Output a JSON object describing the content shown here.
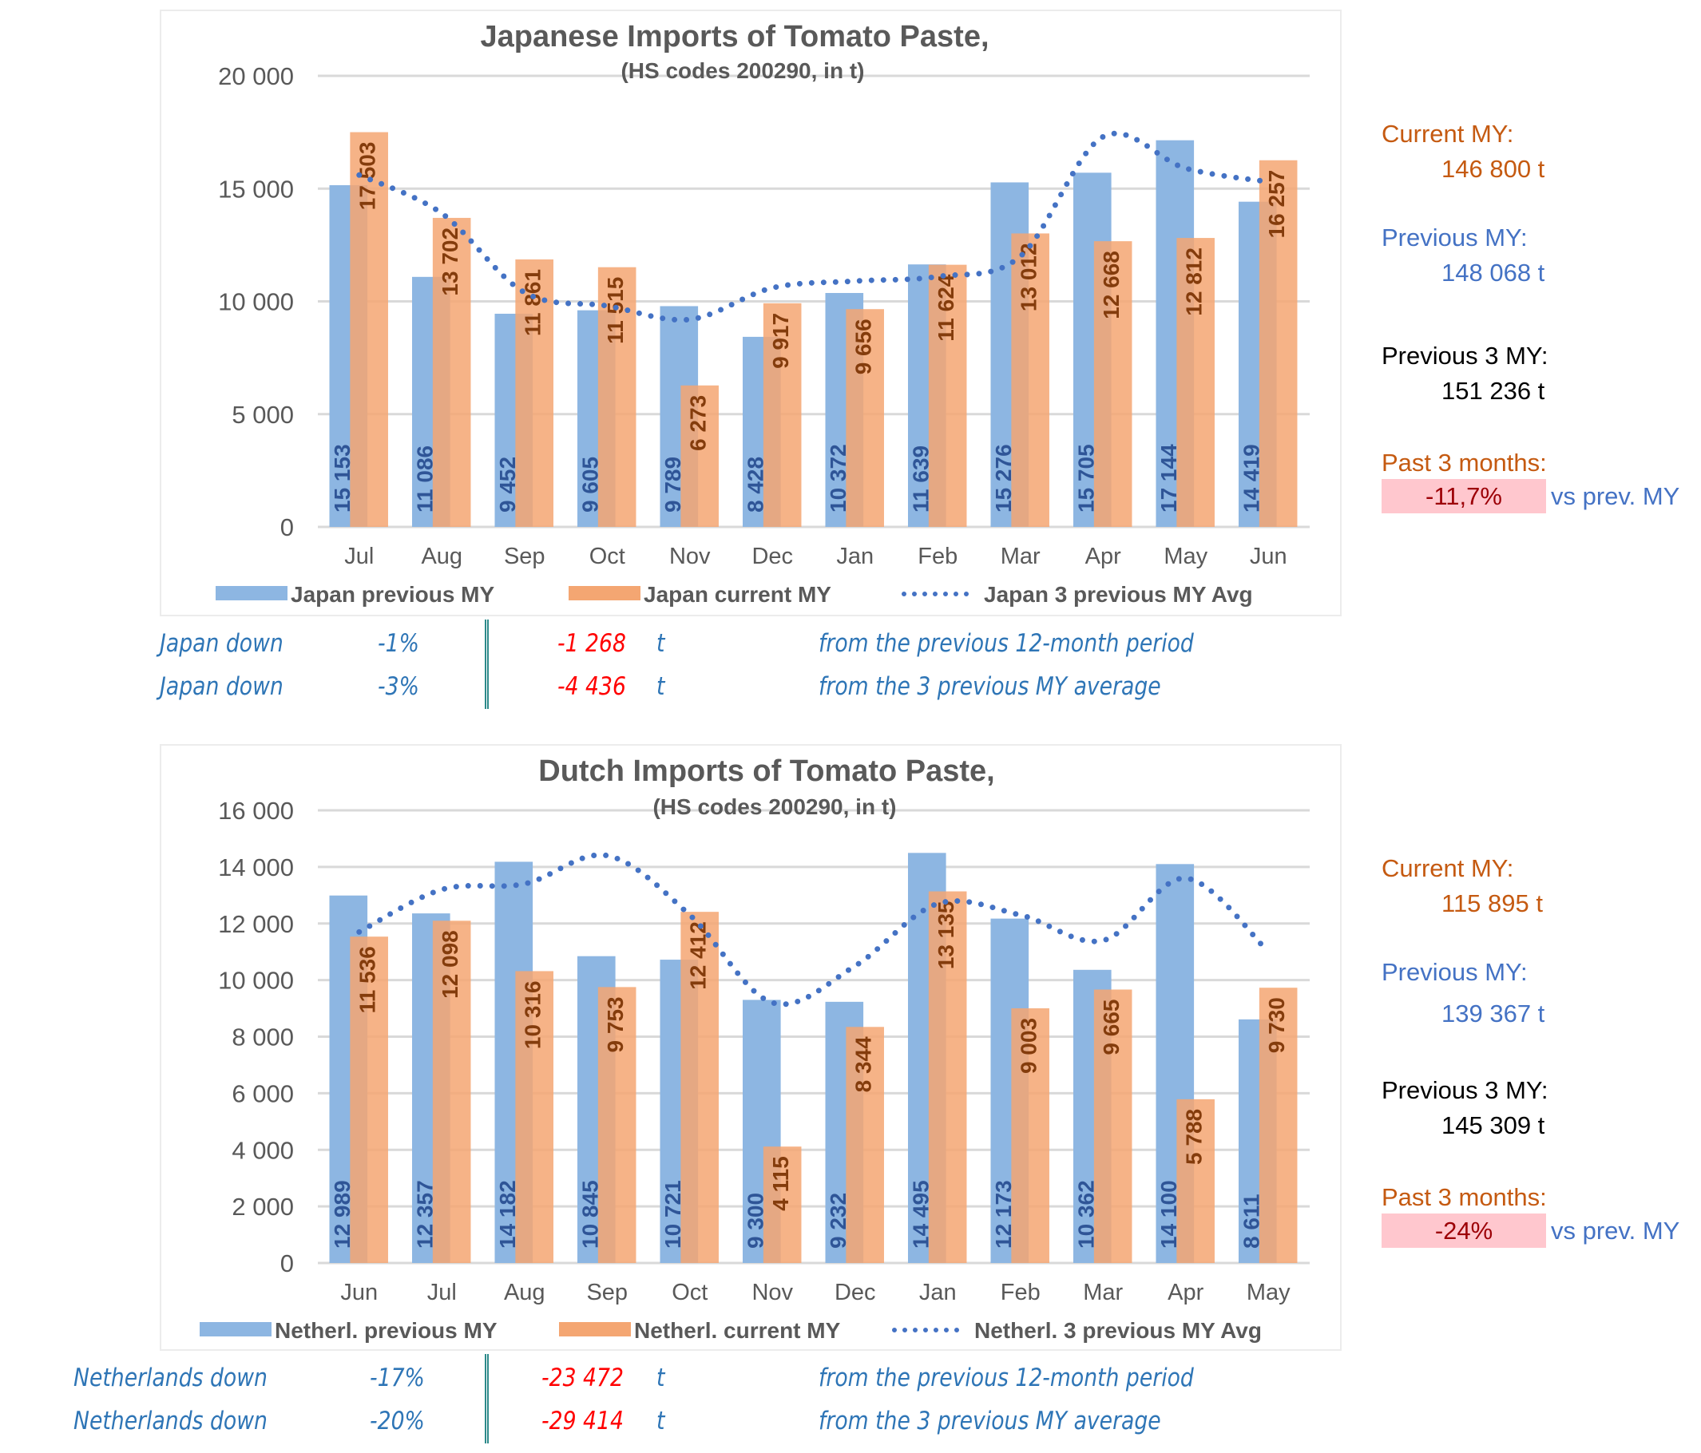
{
  "charts": [
    {
      "id": "japan",
      "side": {
        "current_label": "Current MY:",
        "current_value": "146 800  t",
        "previous_label": "Previous MY:",
        "previous_value": "148 068  t",
        "prev3_label": "Previous 3 MY:",
        "prev3_value": "151 236  t",
        "past3_label": "Past 3 months:",
        "past3_badge": "-11,7%",
        "past3_suffix": "vs prev. MY"
      },
      "footer": [
        {
          "label": "Japan down",
          "pct": "-1%",
          "amount": "-1 268",
          "unit": "t",
          "text": "from the previous 12-month period"
        },
        {
          "label": "Japan down",
          "pct": "-3%",
          "amount": "-4 436",
          "unit": "t",
          "text": "from the 3 previous MY average"
        }
      ]
    },
    {
      "id": "netherlands",
      "side": {
        "current_label": "Current MY:",
        "current_value": "115 895  t",
        "previous_label": "Previous MY:",
        "previous_value": "139 367  t",
        "prev3_label": "Previous 3 MY:",
        "prev3_value": "145 309  t",
        "past3_label": "Past 3 months:",
        "past3_badge": "-24%",
        "past3_suffix": "vs prev. MY"
      },
      "footer": [
        {
          "label": "Netherlands down",
          "pct": "-17%",
          "amount": "-23 472",
          "unit": "t",
          "text": "from the previous 12-month period"
        },
        {
          "label": "Netherlands down",
          "pct": "-20%",
          "amount": "-29 414",
          "unit": "t",
          "text": "from the 3 previous MY average"
        }
      ]
    }
  ],
  "colors": {
    "previous": "#8db6e2",
    "current": "#f4a672",
    "avg": "#4472c4",
    "prev_label": "#2f5597",
    "cur_label": "#843c0c",
    "axis_text": "#595959",
    "grid": "#d9d9d9"
  },
  "chart_data": [
    {
      "type": "bar",
      "title": "Japanese Imports of Tomato Paste,",
      "subtitle": "(HS codes 200290, in t)",
      "xlabel": "",
      "ylabel": "",
      "categories": [
        "Jul",
        "Aug",
        "Sep",
        "Oct",
        "Nov",
        "Dec",
        "Jan",
        "Feb",
        "Mar",
        "Apr",
        "May",
        "Jun"
      ],
      "ylim": [
        0,
        20000
      ],
      "yticks": [
        0,
        5000,
        10000,
        15000,
        20000
      ],
      "ytick_labels": [
        "0",
        "5 000",
        "10 000",
        "15 000",
        "20 000"
      ],
      "grid": true,
      "legend_position": "bottom",
      "series": [
        {
          "name": "Japan previous MY",
          "type": "bar",
          "values": [
            15153,
            11086,
            9452,
            9605,
            9789,
            8428,
            10372,
            11639,
            15276,
            15705,
            17144,
            14419
          ],
          "labels": [
            "15 153",
            "11 086",
            "9 452",
            "9 605",
            "9 789",
            "8 428",
            "10 372",
            "11 639",
            "15 276",
            "15 705",
            "17 144",
            "14 419"
          ]
        },
        {
          "name": "Japan current MY",
          "type": "bar",
          "values": [
            17503,
            13702,
            11861,
            11515,
            6273,
            9917,
            9656,
            11624,
            13012,
            12668,
            12812,
            16257
          ],
          "labels": [
            "17 503",
            "13 702",
            "11 861",
            "11 515",
            "6 273",
            "9 917",
            "9 656",
            "11 624",
            "13 012",
            "12 668",
            "12 812",
            "16 257"
          ]
        },
        {
          "name": "Japan 3 previous MY Avg",
          "type": "line",
          "style": "dotted",
          "values": [
            15600,
            13900,
            10400,
            9800,
            9200,
            10600,
            10900,
            11100,
            12000,
            17300,
            15900,
            15300
          ]
        }
      ]
    },
    {
      "type": "bar",
      "title": "Dutch Imports of Tomato Paste,",
      "subtitle": "(HS codes 200290, in t)",
      "xlabel": "",
      "ylabel": "",
      "categories": [
        "Jun",
        "Jul",
        "Aug",
        "Sep",
        "Oct",
        "Nov",
        "Dec",
        "Jan",
        "Feb",
        "Mar",
        "Apr",
        "May"
      ],
      "ylim": [
        0,
        16000
      ],
      "yticks": [
        0,
        2000,
        4000,
        6000,
        8000,
        10000,
        12000,
        14000,
        16000
      ],
      "ytick_labels": [
        "0",
        "2 000",
        "4 000",
        "6 000",
        "8 000",
        "10 000",
        "12 000",
        "14 000",
        "16 000"
      ],
      "grid": true,
      "legend_position": "bottom",
      "series": [
        {
          "name": "Netherl. previous MY",
          "type": "bar",
          "values": [
            12989,
            12357,
            14182,
            10845,
            10721,
            9300,
            9232,
            14495,
            12173,
            10362,
            14100,
            8611
          ],
          "labels": [
            "12 989",
            "12 357",
            "14 182",
            "10 845",
            "10 721",
            "9 300",
            "9 232",
            "14 495",
            "12 173",
            "10 362",
            "14 100",
            "8 611"
          ]
        },
        {
          "name": "Netherl. current MY",
          "type": "bar",
          "values": [
            11536,
            12098,
            10316,
            9753,
            12412,
            4115,
            8344,
            13135,
            9003,
            9665,
            5788,
            9730
          ],
          "labels": [
            "11 536",
            "12 098",
            "10 316",
            "9 753",
            "12 412",
            "4 115",
            "8 344",
            "13 135",
            "9 003",
            "9 665",
            "5 788",
            "9 730"
          ]
        },
        {
          "name": "Netherl. 3 previous MY Avg",
          "type": "line",
          "style": "dotted",
          "values": [
            11700,
            13200,
            13400,
            14400,
            12300,
            9200,
            10500,
            12700,
            12300,
            11400,
            13600,
            11000
          ]
        }
      ]
    }
  ]
}
